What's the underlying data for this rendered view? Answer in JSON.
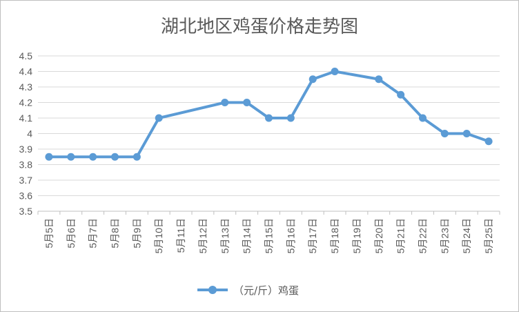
{
  "chart_data": {
    "type": "line",
    "title": "湖北地区鸡蛋价格走势图",
    "categories": [
      "5月5日",
      "5月6日",
      "5月7日",
      "5月8日",
      "5月9日",
      "5月10日",
      "5月11日",
      "5月12日",
      "5月13日",
      "5月14日",
      "5月15日",
      "5月16日",
      "5月17日",
      "5月18日",
      "5月19日",
      "5月20日",
      "5月21日",
      "5月22日",
      "5月23日",
      "5月24日",
      "5月25日"
    ],
    "series": [
      {
        "name": "（元/斤）鸡蛋",
        "color": "#5b9bd5",
        "values": [
          3.85,
          3.85,
          3.85,
          3.85,
          3.85,
          4.1,
          null,
          null,
          4.2,
          4.2,
          4.1,
          4.1,
          4.35,
          4.4,
          null,
          4.35,
          4.25,
          4.1,
          4.0,
          4.0,
          3.95
        ]
      }
    ],
    "yticks": [
      "3.5",
      "3.6",
      "3.7",
      "3.8",
      "3.9",
      "4",
      "4.1",
      "4.2",
      "4.3",
      "4.4",
      "4.5"
    ],
    "ylim": [
      3.5,
      4.5
    ],
    "grid": true,
    "legend": "bottom"
  }
}
